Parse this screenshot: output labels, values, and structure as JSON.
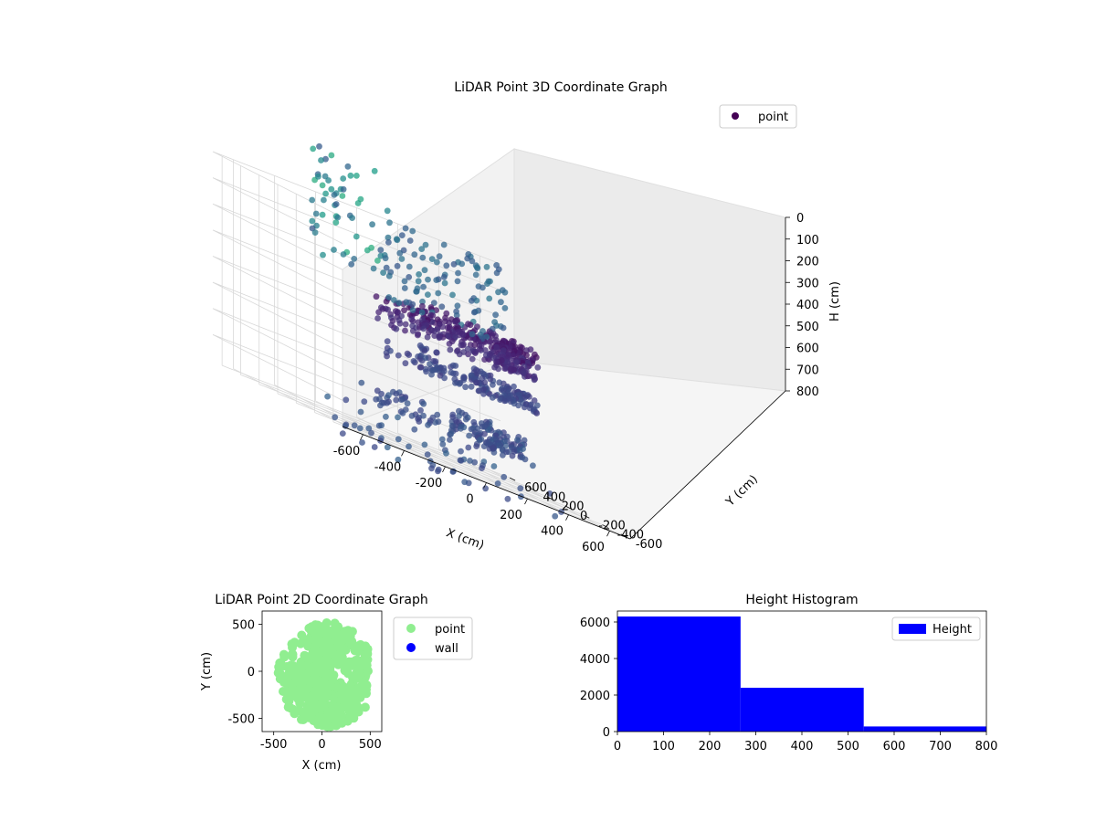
{
  "chart_data": [
    {
      "type": "scatter",
      "title": "LiDAR Point 3D Coordinate Graph",
      "xlabel": "X (cm)",
      "ylabel": "Y (cm)",
      "zlabel": "H (cm)",
      "xlim": [
        -700,
        700
      ],
      "ylim": [
        -700,
        700
      ],
      "zlim": [
        800,
        0
      ],
      "x_ticks": [
        "-600",
        "-400",
        "-200",
        "0",
        "200",
        "400",
        "600"
      ],
      "y_ticks": [
        "-600",
        "-400",
        "-200",
        "0",
        "200",
        "400",
        "600"
      ],
      "z_ticks": [
        "0",
        "100",
        "200",
        "300",
        "400",
        "500",
        "600",
        "700",
        "800"
      ],
      "grid": true,
      "legend": {
        "placement": "top-right",
        "entries": [
          "point"
        ]
      },
      "colormap": "viridis",
      "series": [
        {
          "name": "point",
          "color": "#440154"
        }
      ]
    },
    {
      "type": "scatter",
      "title": "LiDAR Point 2D Coordinate Graph",
      "xlabel": "X (cm)",
      "ylabel": "Y (cm)",
      "xlim": [
        -620,
        620
      ],
      "ylim": [
        -640,
        640
      ],
      "x_ticks": [
        "-500",
        "0",
        "500"
      ],
      "y_ticks": [
        "500",
        "0",
        "-500"
      ],
      "legend": {
        "placement": "outside-right",
        "entries": [
          "point",
          "wall"
        ]
      },
      "series": [
        {
          "name": "point",
          "color": "#90ee90"
        },
        {
          "name": "wall",
          "color": "#0000ff"
        }
      ]
    },
    {
      "type": "bar",
      "title": "Height Histogram",
      "xlabel": "",
      "ylabel": "",
      "bins": [
        [
          0,
          267
        ],
        [
          267,
          534
        ],
        [
          534,
          800
        ]
      ],
      "values": [
        6300,
        2400,
        280
      ],
      "xlim": [
        0,
        800
      ],
      "ylim": [
        0,
        6600
      ],
      "x_ticks": [
        "0",
        "100",
        "200",
        "300",
        "400",
        "500",
        "600",
        "700",
        "800"
      ],
      "y_ticks": [
        "0",
        "2000",
        "4000",
        "6000"
      ],
      "legend": {
        "placement": "top-right",
        "entries": [
          "Height"
        ]
      },
      "series": [
        {
          "name": "Height",
          "color": "#0000ff"
        }
      ]
    }
  ]
}
